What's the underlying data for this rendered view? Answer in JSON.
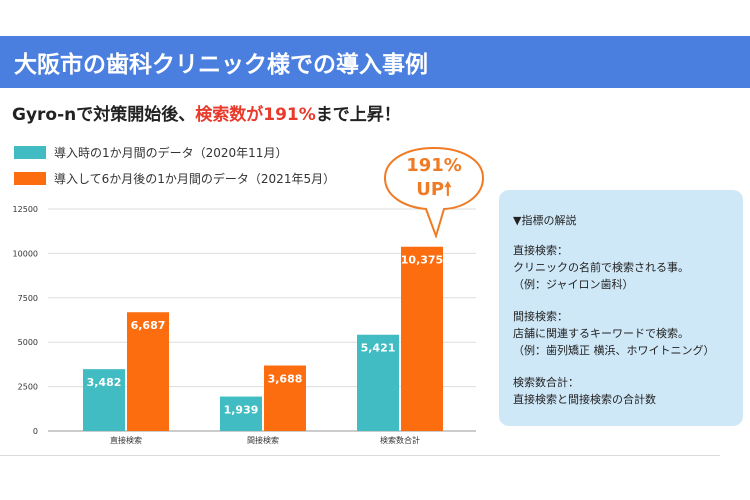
{
  "banner": {
    "title": "大阪市の歯科クリニック様での導入事例"
  },
  "headline": {
    "prefix": "Gyro-nで対策開始後、",
    "highlight": "検索数が191%",
    "suffix": "まで上昇！"
  },
  "callout": {
    "line1": "191%",
    "line2": "UP",
    "icon": "up-arrow-icon"
  },
  "info_box": {
    "title": "▼指標の解説",
    "sections": [
      {
        "heading": "直接検索：",
        "lines": [
          "クリニックの名前で検索される事。",
          "（例：ジャイロン歯科）"
        ]
      },
      {
        "heading": "間接検索：",
        "lines": [
          "店舗に関連するキーワードで検索。",
          "（例：歯列矯正 横浜、ホワイトニング）"
        ]
      },
      {
        "heading": "検索数合計：",
        "lines": [
          "直接検索と間接検索の合計数"
        ]
      }
    ]
  },
  "colors": {
    "banner": "#4a7fe0",
    "series1": "#40bcc2",
    "series2": "#fb6d0f",
    "highlight": "#e8392a",
    "callout": "#ef7b25",
    "info_bg": "#cfe8f8"
  },
  "chart_data": {
    "type": "bar",
    "categories": [
      "直接検索",
      "間接検索",
      "検索数合計"
    ],
    "series": [
      {
        "name": "導入時の1か月間のデータ（2020年11月）",
        "values": [
          3482,
          1939,
          5421
        ],
        "labels": [
          "3,482",
          "1,939",
          "5,421"
        ]
      },
      {
        "name": "導入して6か月後の1か月間のデータ（2021年5月）",
        "values": [
          6687,
          3688,
          10375
        ],
        "labels": [
          "6,687",
          "3,688",
          "10,375"
        ]
      }
    ],
    "ylim": [
      0,
      12500
    ],
    "yticks": [
      0,
      2500,
      5000,
      7500,
      10000,
      12500
    ],
    "ytick_labels": [
      "0",
      "2500",
      "5000",
      "7500",
      "10000",
      "12500"
    ],
    "grid": true,
    "legend": "top-left"
  }
}
